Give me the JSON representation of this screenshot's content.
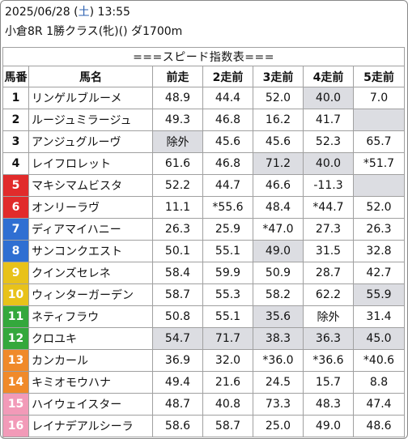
{
  "header": {
    "date": "2025/06/28",
    "dow_open": " (",
    "dow": "土",
    "dow_close": ") 13:55",
    "race": "小倉8R 1勝クラス(牝)() ダ1700m"
  },
  "table": {
    "title": "===スピード指数表===",
    "columns": [
      "馬番",
      "馬名",
      "前走",
      "2走前",
      "3走前",
      "4走前",
      "5走前"
    ],
    "rows": [
      {
        "num": "1",
        "name": "リンゲルブルーメ",
        "cells": [
          "48.9",
          "44.4",
          "52.0",
          "40.0",
          "7.0"
        ],
        "hl": [
          false,
          false,
          false,
          true,
          false
        ]
      },
      {
        "num": "2",
        "name": "ルージュミラージュ",
        "cells": [
          "49.3",
          "46.8",
          "16.2",
          "41.7",
          ""
        ],
        "hl": [
          false,
          false,
          false,
          false,
          true
        ]
      },
      {
        "num": "3",
        "name": "アンジュグルーヴ",
        "cells": [
          "除外",
          "45.6",
          "45.6",
          "52.3",
          "65.7"
        ],
        "hl": [
          true,
          false,
          false,
          false,
          false
        ]
      },
      {
        "num": "4",
        "name": "レイフロレット",
        "cells": [
          "61.6",
          "46.8",
          "71.2",
          "40.0",
          "*51.7"
        ],
        "hl": [
          false,
          false,
          true,
          true,
          false
        ]
      },
      {
        "num": "5",
        "name": "マキシマムビスタ",
        "cells": [
          "52.2",
          "44.7",
          "46.6",
          "-11.3",
          ""
        ],
        "hl": [
          false,
          false,
          false,
          false,
          true
        ]
      },
      {
        "num": "6",
        "name": "オンリーラヴ",
        "cells": [
          "11.1",
          "*55.6",
          "48.4",
          "*44.7",
          "52.0"
        ],
        "hl": [
          false,
          false,
          false,
          false,
          false
        ]
      },
      {
        "num": "7",
        "name": "ディアマイハニー",
        "cells": [
          "26.3",
          "25.9",
          "*47.0",
          "27.3",
          "26.3"
        ],
        "hl": [
          false,
          false,
          false,
          false,
          false
        ]
      },
      {
        "num": "8",
        "name": "サンコンクエスト",
        "cells": [
          "50.1",
          "55.1",
          "49.0",
          "31.5",
          "32.8"
        ],
        "hl": [
          false,
          false,
          true,
          false,
          false
        ]
      },
      {
        "num": "9",
        "name": "クインズセレネ",
        "cells": [
          "58.4",
          "59.9",
          "50.9",
          "28.7",
          "42.7"
        ],
        "hl": [
          false,
          false,
          false,
          false,
          false
        ]
      },
      {
        "num": "10",
        "name": "ウィンターガーデン",
        "cells": [
          "58.7",
          "55.3",
          "58.2",
          "62.2",
          "55.9"
        ],
        "hl": [
          false,
          false,
          false,
          false,
          true
        ]
      },
      {
        "num": "11",
        "name": "ネティフラウ",
        "cells": [
          "50.8",
          "55.1",
          "35.6",
          "除外",
          "31.4"
        ],
        "hl": [
          false,
          false,
          true,
          false,
          false
        ]
      },
      {
        "num": "12",
        "name": "クロユキ",
        "cells": [
          "54.7",
          "71.7",
          "38.3",
          "36.3",
          "45.0"
        ],
        "hl": [
          true,
          true,
          true,
          true,
          true
        ]
      },
      {
        "num": "13",
        "name": "カンカール",
        "cells": [
          "36.9",
          "32.0",
          "*36.0",
          "*36.6",
          "*40.6"
        ],
        "hl": [
          false,
          false,
          false,
          false,
          false
        ]
      },
      {
        "num": "14",
        "name": "キミオモウハナ",
        "cells": [
          "49.4",
          "21.6",
          "24.5",
          "15.7",
          "8.8"
        ],
        "hl": [
          false,
          false,
          false,
          false,
          false
        ]
      },
      {
        "num": "15",
        "name": "ハイウェイスター",
        "cells": [
          "48.7",
          "40.8",
          "73.3",
          "48.3",
          "47.4"
        ],
        "hl": [
          false,
          false,
          false,
          false,
          false
        ]
      },
      {
        "num": "16",
        "name": "レイナデアルシーラ",
        "cells": [
          "58.6",
          "58.7",
          "25.0",
          "49.0",
          "48.6"
        ],
        "hl": [
          false,
          false,
          false,
          false,
          false
        ]
      }
    ]
  },
  "colors": {
    "frame_1": "#ffffff",
    "frame_2": "#ffffff",
    "frame_3": "#e12b2b",
    "frame_4": "#2f6fd2",
    "frame_5": "#e8c21a",
    "frame_6": "#34a83c",
    "frame_7": "#f08a2a",
    "frame_8": "#f29ab8",
    "highlight": "#dcdde2",
    "dow": "#2a5fb0"
  }
}
